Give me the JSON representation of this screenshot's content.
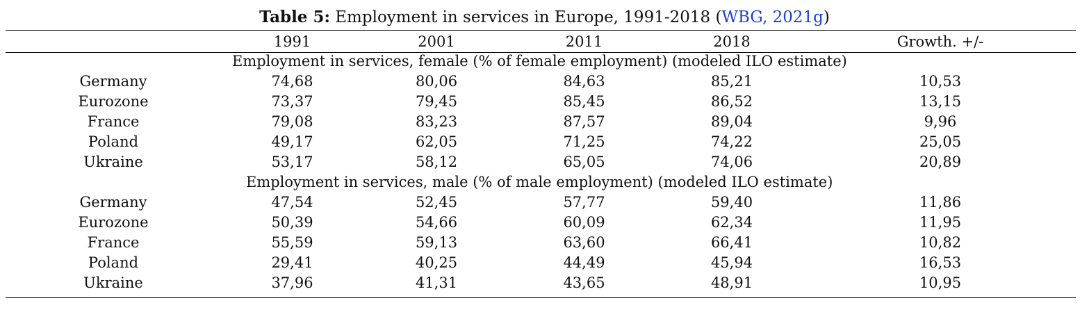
{
  "caption": {
    "label": "Table 5:",
    "text": " Employment in services in Europe, 1991-2018 (",
    "citation": "WBG, 2021g",
    "close": ")"
  },
  "header": [
    "",
    "1991",
    "2001",
    "2011",
    "2018",
    "Growth. +/-"
  ],
  "sections": [
    {
      "title": "Employment in services, female (% of female employment) (modeled ILO estimate)",
      "rows": [
        [
          "Germany",
          "74,68",
          "80,06",
          "84,63",
          "85,21",
          "10,53"
        ],
        [
          "Eurozone",
          "73,37",
          "79,45",
          "85,45",
          "86,52",
          "13,15"
        ],
        [
          "France",
          "79,08",
          "83,23",
          "87,57",
          "89,04",
          "9,96"
        ],
        [
          "Poland",
          "49,17",
          "62,05",
          "71,25",
          "74,22",
          "25,05"
        ],
        [
          "Ukraine",
          "53,17",
          "58,12",
          "65,05",
          "74,06",
          "20,89"
        ]
      ]
    },
    {
      "title": "Employment in services, male (% of male employment) (modeled ILO estimate)",
      "rows": [
        [
          "Germany",
          "47,54",
          "52,45",
          "57,77",
          "59,40",
          "11,86"
        ],
        [
          "Eurozone",
          "50,39",
          "54,66",
          "60,09",
          "62,34",
          "11,95"
        ],
        [
          "France",
          "55,59",
          "59,13",
          "63,60",
          "66,41",
          "10,82"
        ],
        [
          "Poland",
          "29,41",
          "40,25",
          "44,49",
          "45,94",
          "16,53"
        ],
        [
          "Ukraine",
          "37,96",
          "41,31",
          "43,65",
          "48,91",
          "10,95"
        ]
      ]
    }
  ],
  "colors": {
    "citation_link": "#1f3fcf",
    "text": "#111111"
  }
}
